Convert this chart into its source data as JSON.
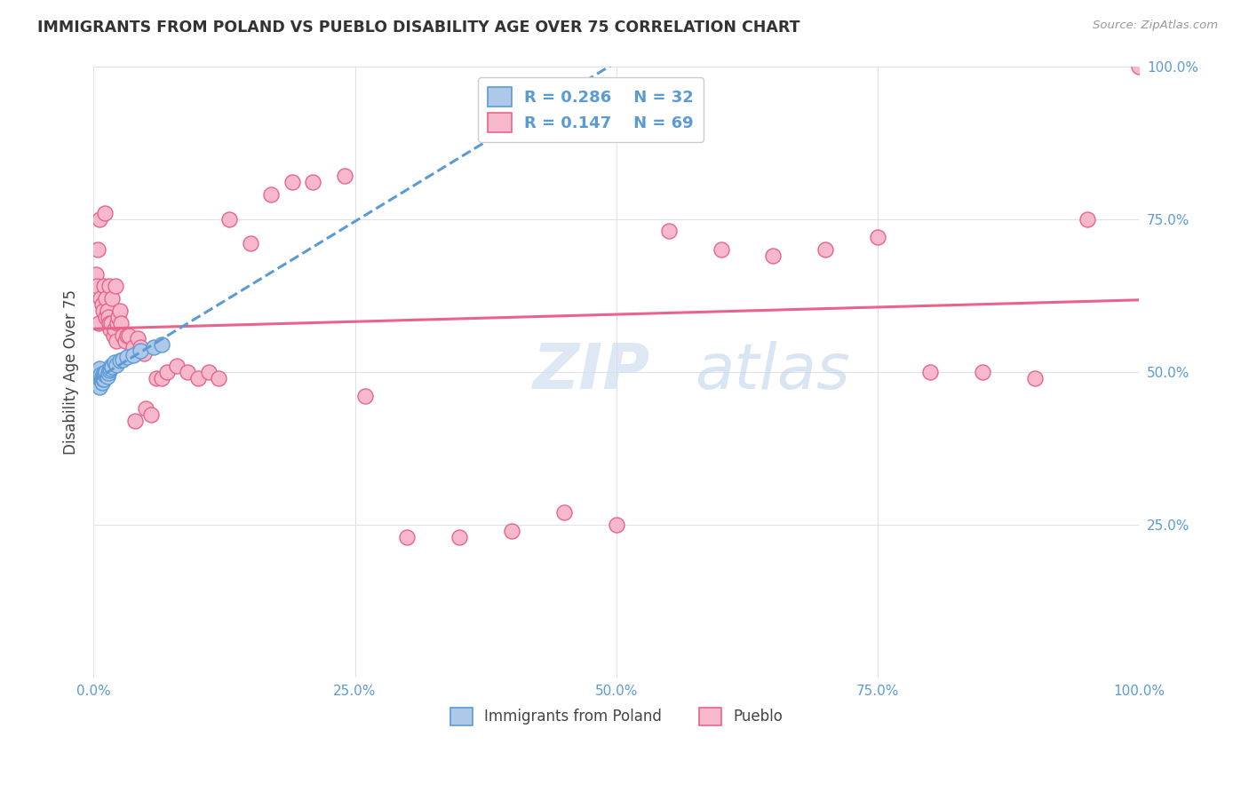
{
  "title": "IMMIGRANTS FROM POLAND VS PUEBLO DISABILITY AGE OVER 75 CORRELATION CHART",
  "source": "Source: ZipAtlas.com",
  "ylabel": "Disability Age Over 75",
  "legend_r1": "R = 0.286",
  "legend_n1": "N = 32",
  "legend_r2": "R = 0.147",
  "legend_n2": "N = 69",
  "poland_color": "#adc8e8",
  "pueblo_color": "#f7b8cb",
  "poland_edge_color": "#5b9bd5",
  "pueblo_edge_color": "#e8648a",
  "poland_line_color": "#5b9bd5",
  "pueblo_line_color": "#e8648a",
  "background_color": "#ffffff",
  "grid_color": "#e0e0e8",
  "watermark_color": "#dce8f5",
  "poland_x": [
    0.002,
    0.003,
    0.004,
    0.005,
    0.005,
    0.006,
    0.006,
    0.007,
    0.007,
    0.008,
    0.008,
    0.009,
    0.009,
    0.01,
    0.01,
    0.011,
    0.012,
    0.013,
    0.014,
    0.015,
    0.016,
    0.017,
    0.018,
    0.02,
    0.022,
    0.025,
    0.028,
    0.032,
    0.038,
    0.045,
    0.058,
    0.065
  ],
  "poland_y": [
    0.495,
    0.485,
    0.49,
    0.48,
    0.5,
    0.475,
    0.505,
    0.488,
    0.495,
    0.483,
    0.492,
    0.488,
    0.495,
    0.498,
    0.488,
    0.495,
    0.5,
    0.492,
    0.498,
    0.502,
    0.505,
    0.51,
    0.508,
    0.515,
    0.512,
    0.518,
    0.52,
    0.525,
    0.528,
    0.535,
    0.54,
    0.545
  ],
  "pueblo_x": [
    0.002,
    0.003,
    0.004,
    0.005,
    0.006,
    0.007,
    0.008,
    0.009,
    0.01,
    0.011,
    0.012,
    0.012,
    0.013,
    0.014,
    0.015,
    0.015,
    0.016,
    0.017,
    0.018,
    0.019,
    0.02,
    0.021,
    0.022,
    0.023,
    0.024,
    0.025,
    0.026,
    0.028,
    0.03,
    0.032,
    0.034,
    0.036,
    0.038,
    0.04,
    0.042,
    0.045,
    0.048,
    0.05,
    0.055,
    0.06,
    0.065,
    0.07,
    0.08,
    0.09,
    0.1,
    0.11,
    0.12,
    0.13,
    0.15,
    0.17,
    0.19,
    0.21,
    0.24,
    0.26,
    0.3,
    0.35,
    0.4,
    0.45,
    0.5,
    0.55,
    0.6,
    0.65,
    0.7,
    0.75,
    0.8,
    0.85,
    0.9,
    0.95,
    1.0
  ],
  "pueblo_y": [
    0.66,
    0.64,
    0.7,
    0.58,
    0.75,
    0.62,
    0.61,
    0.6,
    0.64,
    0.76,
    0.59,
    0.62,
    0.6,
    0.59,
    0.58,
    0.64,
    0.57,
    0.58,
    0.62,
    0.56,
    0.57,
    0.64,
    0.55,
    0.58,
    0.59,
    0.6,
    0.58,
    0.56,
    0.55,
    0.56,
    0.56,
    0.53,
    0.54,
    0.42,
    0.555,
    0.54,
    0.53,
    0.44,
    0.43,
    0.49,
    0.49,
    0.5,
    0.51,
    0.5,
    0.49,
    0.5,
    0.49,
    0.75,
    0.71,
    0.79,
    0.81,
    0.81,
    0.82,
    0.46,
    0.23,
    0.23,
    0.24,
    0.27,
    0.25,
    0.73,
    0.7,
    0.69,
    0.7,
    0.72,
    0.5,
    0.5,
    0.49,
    0.75,
    1.0
  ],
  "xlim": [
    0.0,
    1.0
  ],
  "ylim": [
    0.0,
    1.0
  ],
  "xtick_positions": [
    0.0,
    0.25,
    0.5,
    0.75,
    1.0
  ],
  "xtick_labels": [
    "0.0%",
    "25.0%",
    "50.0%",
    "75.0%",
    "100.0%"
  ],
  "ytick_positions": [
    0.0,
    0.25,
    0.5,
    0.75,
    1.0
  ],
  "ytick_right_labels": [
    "",
    "25.0%",
    "50.0%",
    "75.0%",
    "100.0%"
  ]
}
